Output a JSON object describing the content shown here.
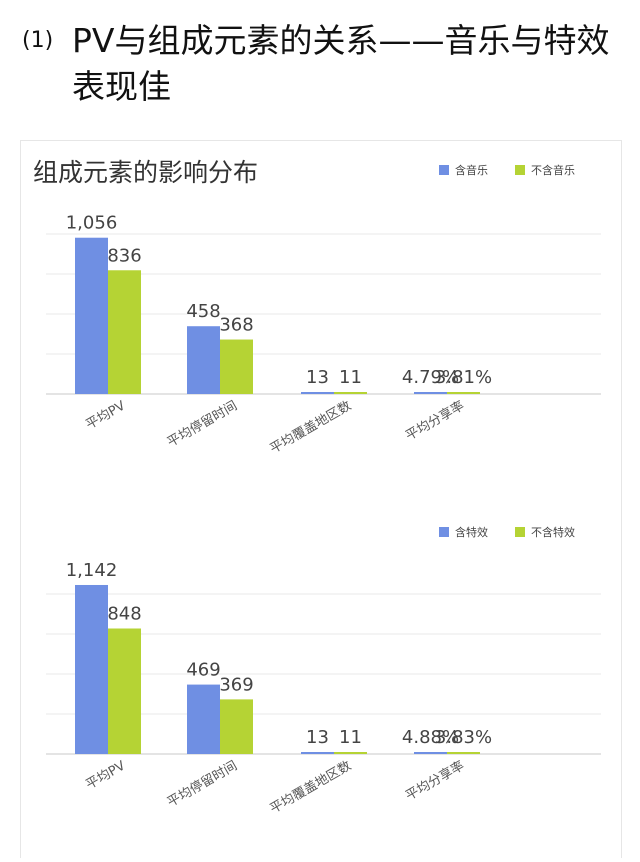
{
  "heading": {
    "number": "(1)",
    "title": "PV与组成元素的关系——音乐与特效表现佳"
  },
  "colors": {
    "series_a": "#6f8fe3",
    "series_b": "#b5d334",
    "grid": "#e9e9e9",
    "axis": "#c8c8c8"
  },
  "chart_data": [
    {
      "type": "bar",
      "title": "组成元素的影响分布",
      "categories": [
        "平均PV",
        "平均停留时间",
        "平均覆盖地区数",
        "平均分享率"
      ],
      "series": [
        {
          "name": "含音乐",
          "values": [
            1056,
            458,
            13,
            4.79
          ],
          "labels": [
            "1,056",
            "458",
            "13",
            "4.79%"
          ]
        },
        {
          "name": "不含音乐",
          "values": [
            836,
            368,
            11,
            3.81
          ],
          "labels": [
            "836",
            "368",
            "11",
            "3.81%"
          ]
        }
      ],
      "ylim": [
        0,
        1600
      ],
      "grid": true,
      "legend": "top-right"
    },
    {
      "type": "bar",
      "title": "",
      "categories": [
        "平均PV",
        "平均停留时间",
        "平均覆盖地区数",
        "平均分享率"
      ],
      "series": [
        {
          "name": "含特效",
          "values": [
            1142,
            469,
            13,
            4.88
          ],
          "labels": [
            "1,142",
            "469",
            "13",
            "4.88%"
          ]
        },
        {
          "name": "不含特效",
          "values": [
            848,
            369,
            11,
            3.83
          ],
          "labels": [
            "848",
            "369",
            "11",
            "3.83%"
          ]
        }
      ],
      "ylim": [
        0,
        1600
      ],
      "grid": true,
      "legend": "top-right"
    }
  ]
}
